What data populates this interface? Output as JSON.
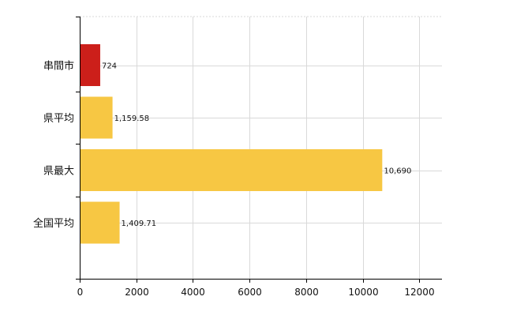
{
  "chart_data": {
    "type": "bar",
    "orientation": "horizontal",
    "categories": [
      "串間市",
      "県平均",
      "県最大",
      "全国平均"
    ],
    "values": [
      724,
      1159.58,
      10690,
      1409.71
    ],
    "value_labels": [
      "724",
      "1,159.58",
      "10,690",
      "1,409.71"
    ],
    "bar_colors": [
      "#cc1f1a",
      "#f7c743",
      "#f7c743",
      "#f7c743"
    ],
    "xlim": [
      0,
      12800
    ],
    "x_ticks": [
      0,
      2000,
      4000,
      6000,
      8000,
      10000,
      12000
    ],
    "x_tick_labels": [
      "0",
      "2000",
      "4000",
      "6000",
      "8000",
      "10000",
      "12000"
    ],
    "grid": true,
    "legend": "none",
    "title": "",
    "xlabel": "",
    "ylabel": ""
  },
  "colors": {
    "highlight_bar": "#cc1f1a",
    "default_bar": "#f7c743",
    "grid": "#d9d9d9",
    "axis": "#000000",
    "text": "#111111"
  }
}
